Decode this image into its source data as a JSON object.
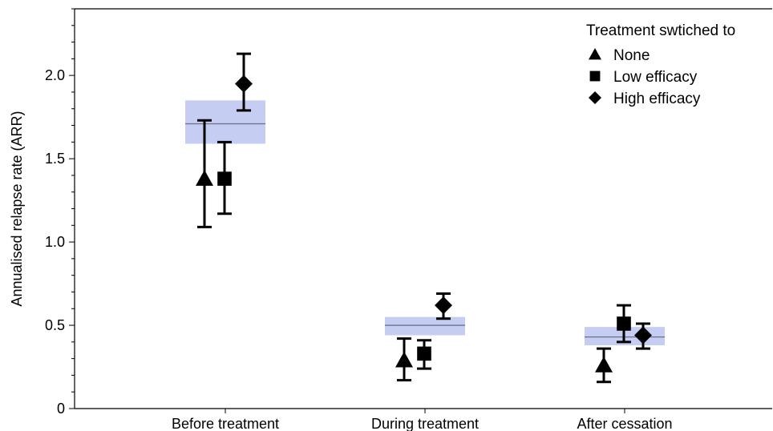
{
  "chart_data": {
    "type": "scatter",
    "title": "",
    "xlabel": "",
    "ylabel": "Annualised relapse rate (ARR)",
    "categories": [
      "Before treatment",
      "During treatment",
      "After cessation"
    ],
    "ylim": [
      0,
      2.4
    ],
    "yticks": [
      0,
      0.5,
      1.0,
      1.5,
      2.0
    ],
    "ytick_labels": [
      "0",
      "0.5",
      "1.0",
      "1.5",
      "2.0"
    ],
    "grid": false,
    "legend": {
      "title": "Treatment swtiched to",
      "position": "top-right"
    },
    "reference_bands": [
      {
        "category": "Before treatment",
        "mean": 1.71,
        "lower": 1.59,
        "upper": 1.85
      },
      {
        "category": "During treatment",
        "mean": 0.5,
        "lower": 0.44,
        "upper": 0.55
      },
      {
        "category": "After cessation",
        "mean": 0.43,
        "lower": 0.38,
        "upper": 0.49
      }
    ],
    "series": [
      {
        "name": "None",
        "marker": "triangle",
        "values": [
          1.38,
          0.29,
          0.26
        ],
        "lower": [
          1.09,
          0.17,
          0.16
        ],
        "upper": [
          1.73,
          0.42,
          0.36
        ]
      },
      {
        "name": "Low efficacy",
        "marker": "square",
        "values": [
          1.38,
          0.33,
          0.51
        ],
        "lower": [
          1.17,
          0.24,
          0.4
        ],
        "upper": [
          1.6,
          0.41,
          0.62
        ]
      },
      {
        "name": "High efficacy",
        "marker": "diamond",
        "values": [
          1.95,
          0.62,
          0.44
        ],
        "lower": [
          1.79,
          0.54,
          0.36
        ],
        "upper": [
          2.13,
          0.69,
          0.51
        ]
      }
    ],
    "colors": {
      "band": "#c5cdf3",
      "band_line": "#6f6f8a",
      "marker": "#000000"
    }
  }
}
